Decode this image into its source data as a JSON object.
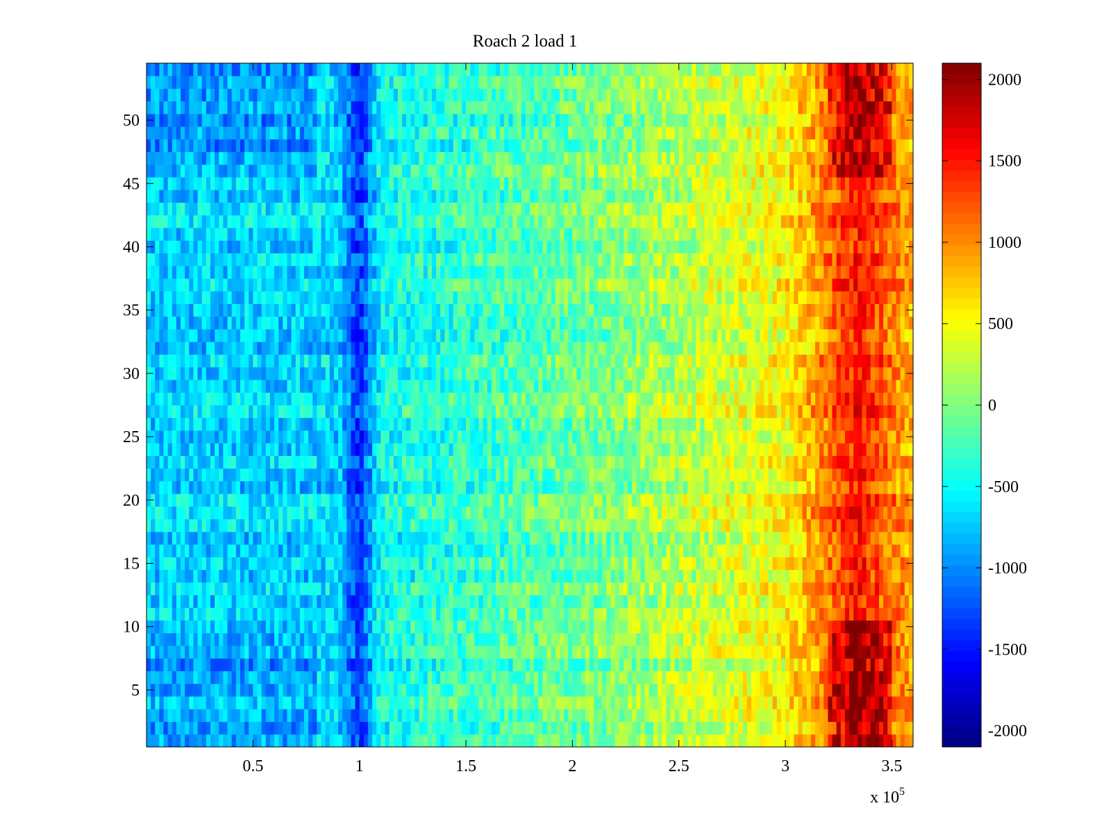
{
  "chart_data": {
    "type": "heatmap",
    "title": "Roach 2 load 1",
    "colormap": "jet",
    "x_range": [
      0,
      360000
    ],
    "y_range": [
      0.5,
      54.5
    ],
    "rows": 54,
    "x_ticks": [
      50000,
      100000,
      150000,
      200000,
      250000,
      300000,
      350000
    ],
    "x_tick_labels": [
      "0.5",
      "1",
      "1.5",
      "2",
      "2.5",
      "3",
      "3.5"
    ],
    "x_exponent_label": {
      "base": "x 10",
      "exponent": "5"
    },
    "y_ticks": [
      5,
      10,
      15,
      20,
      25,
      30,
      35,
      40,
      45,
      50
    ],
    "y_tick_labels": [
      "5",
      "10",
      "15",
      "20",
      "25",
      "30",
      "35",
      "40",
      "45",
      "50"
    ],
    "colorbar": {
      "range": [
        -2100,
        2100
      ],
      "ticks": [
        2000,
        1500,
        1000,
        500,
        0,
        -500,
        -1000,
        -1500,
        -2000
      ],
      "tick_labels": [
        "2000",
        "1500",
        "1000",
        "500",
        "0",
        "-500",
        "-1000",
        "-1500",
        "-2000"
      ]
    },
    "trend_profile": [
      {
        "x": 0,
        "value": -700
      },
      {
        "x": 90000,
        "value": -700
      },
      {
        "x": 100000,
        "value": -1400
      },
      {
        "x": 110000,
        "value": -500
      },
      {
        "x": 200000,
        "value": -100
      },
      {
        "x": 300000,
        "value": 500
      },
      {
        "x": 335000,
        "value": 1500
      },
      {
        "x": 360000,
        "value": 800
      }
    ]
  }
}
